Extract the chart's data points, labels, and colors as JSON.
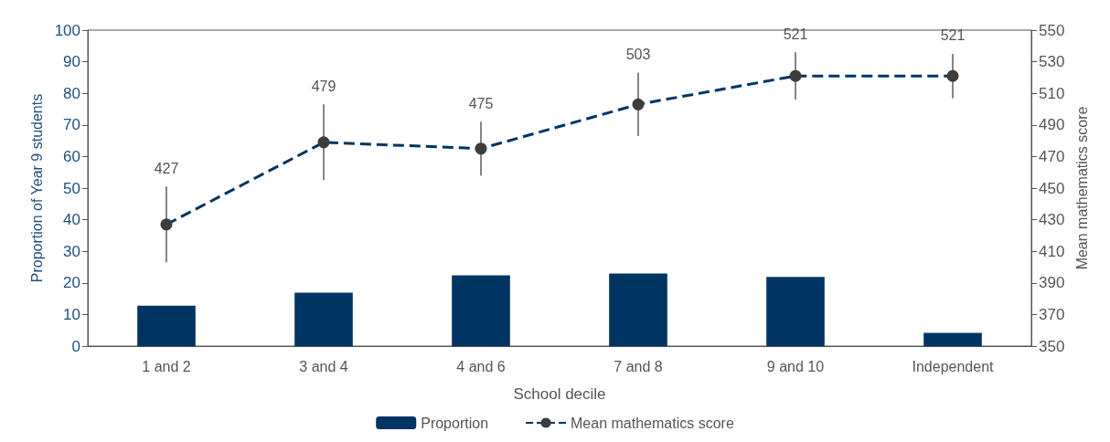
{
  "chart_data": {
    "type": "bar",
    "xlabel": "School decile",
    "ylabel": "Proportion of Year 9 students",
    "y2label": "Mean mathematics score",
    "categories": [
      "1 and 2",
      "3 and 4",
      "4 and 6",
      "7 and 8",
      "9 and 10",
      "Independent"
    ],
    "series": [
      {
        "name": "Proportion",
        "color": "#003462",
        "values": [
          12.8,
          16.9,
          22.4,
          23,
          21.9,
          4.2
        ]
      },
      {
        "name": "Mean mathematics score",
        "type": "line",
        "axis": "y2",
        "color": "#003462",
        "marker": "circle",
        "line_style": "dashed",
        "values": [
          427,
          479,
          475,
          503,
          521,
          521
        ],
        "errors": [
          24,
          24,
          17,
          20,
          15,
          14
        ],
        "value_labels": [
          "427",
          "479",
          "475",
          "503",
          "521",
          "521"
        ]
      }
    ],
    "ylim": [
      0,
      100
    ],
    "yticks": [
      0,
      10,
      20,
      30,
      40,
      50,
      60,
      70,
      80,
      90,
      100
    ],
    "y2lim": [
      350,
      550
    ],
    "y2ticks": [
      350,
      370,
      390,
      410,
      430,
      450,
      470,
      490,
      510,
      530,
      550
    ],
    "grid": false,
    "legend": "bottom"
  }
}
